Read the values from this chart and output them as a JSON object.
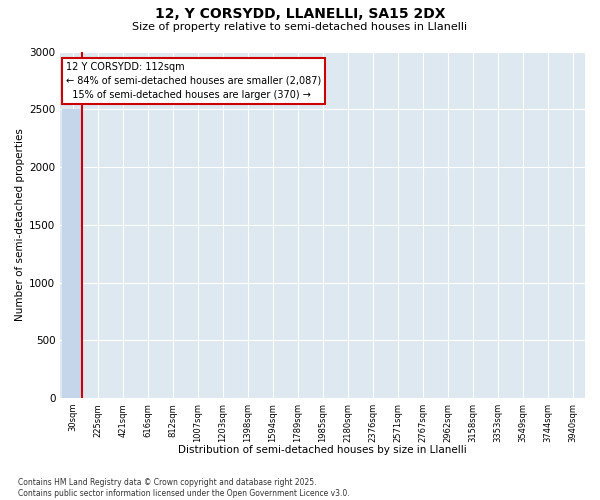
{
  "title1": "12, Y CORSYDD, LLANELLI, SA15 2DX",
  "title2": "Size of property relative to semi-detached houses in Llanelli",
  "xlabel": "Distribution of semi-detached houses by size in Llanelli",
  "ylabel": "Number of semi-detached properties",
  "categories": [
    "30sqm",
    "225sqm",
    "421sqm",
    "616sqm",
    "812sqm",
    "1007sqm",
    "1203sqm",
    "1398sqm",
    "1594sqm",
    "1789sqm",
    "1985sqm",
    "2180sqm",
    "2376sqm",
    "2571sqm",
    "2767sqm",
    "2962sqm",
    "3158sqm",
    "3353sqm",
    "3549sqm",
    "3744sqm",
    "3940sqm"
  ],
  "values": [
    2500,
    0,
    0,
    0,
    0,
    0,
    0,
    0,
    0,
    0,
    0,
    0,
    0,
    0,
    0,
    0,
    0,
    0,
    0,
    0,
    0
  ],
  "bar_color": "#c5d6ea",
  "property_sqm": 112,
  "pct_smaller": 84,
  "count_smaller": 2087,
  "pct_larger": 15,
  "count_larger": 370,
  "annotation_box_color": "#cc0000",
  "background_color": "#dde8f0",
  "ylim_max": 3000,
  "yticks": [
    0,
    500,
    1000,
    1500,
    2000,
    2500,
    3000
  ],
  "footer1": "Contains HM Land Registry data © Crown copyright and database right 2025.",
  "footer2": "Contains public sector information licensed under the Open Government Licence v3.0."
}
